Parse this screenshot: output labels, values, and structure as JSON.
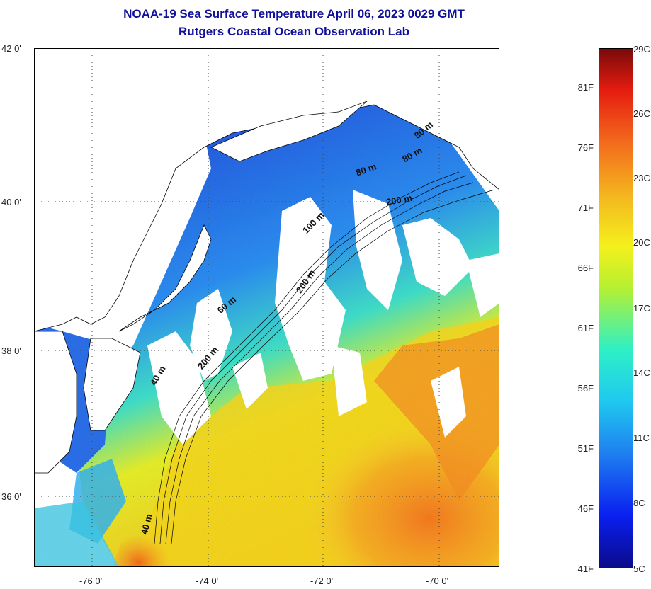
{
  "header": {
    "title": "NOAA-19 Sea Surface Temperature April 06, 2023 0029 GMT",
    "subtitle": "Rutgers Coastal Ocean Observation Lab"
  },
  "map": {
    "lat_labels": [
      "42 0'",
      "40 0'",
      "38 0'",
      "36 0'"
    ],
    "lon_labels": [
      "-76 0'",
      "-74 0'",
      "-72 0'",
      "-70 0'"
    ],
    "contour_labels": [
      "80 m",
      "80 m",
      "80 m",
      "200 m",
      "100 m",
      "200 m",
      "60 m",
      "200 m",
      "40 m",
      "40 m"
    ],
    "colors": {
      "land": "#ffffff",
      "cold": "#1d35d8",
      "cool": "#2aa8f0",
      "mid": "#40e0c0",
      "warm": "#f7e41e",
      "hot": "#f58b20",
      "coast": "#000000"
    }
  },
  "colorbar": {
    "fahrenheit_labels": [
      "81F",
      "76F",
      "71F",
      "66F",
      "61F",
      "56F",
      "51F",
      "46F",
      "41F"
    ],
    "celsius_labels": [
      "29C",
      "26C",
      "23C",
      "20C",
      "17C",
      "14C",
      "11C",
      "8C",
      "5C"
    ],
    "min_c": 5,
    "max_c": 29
  }
}
